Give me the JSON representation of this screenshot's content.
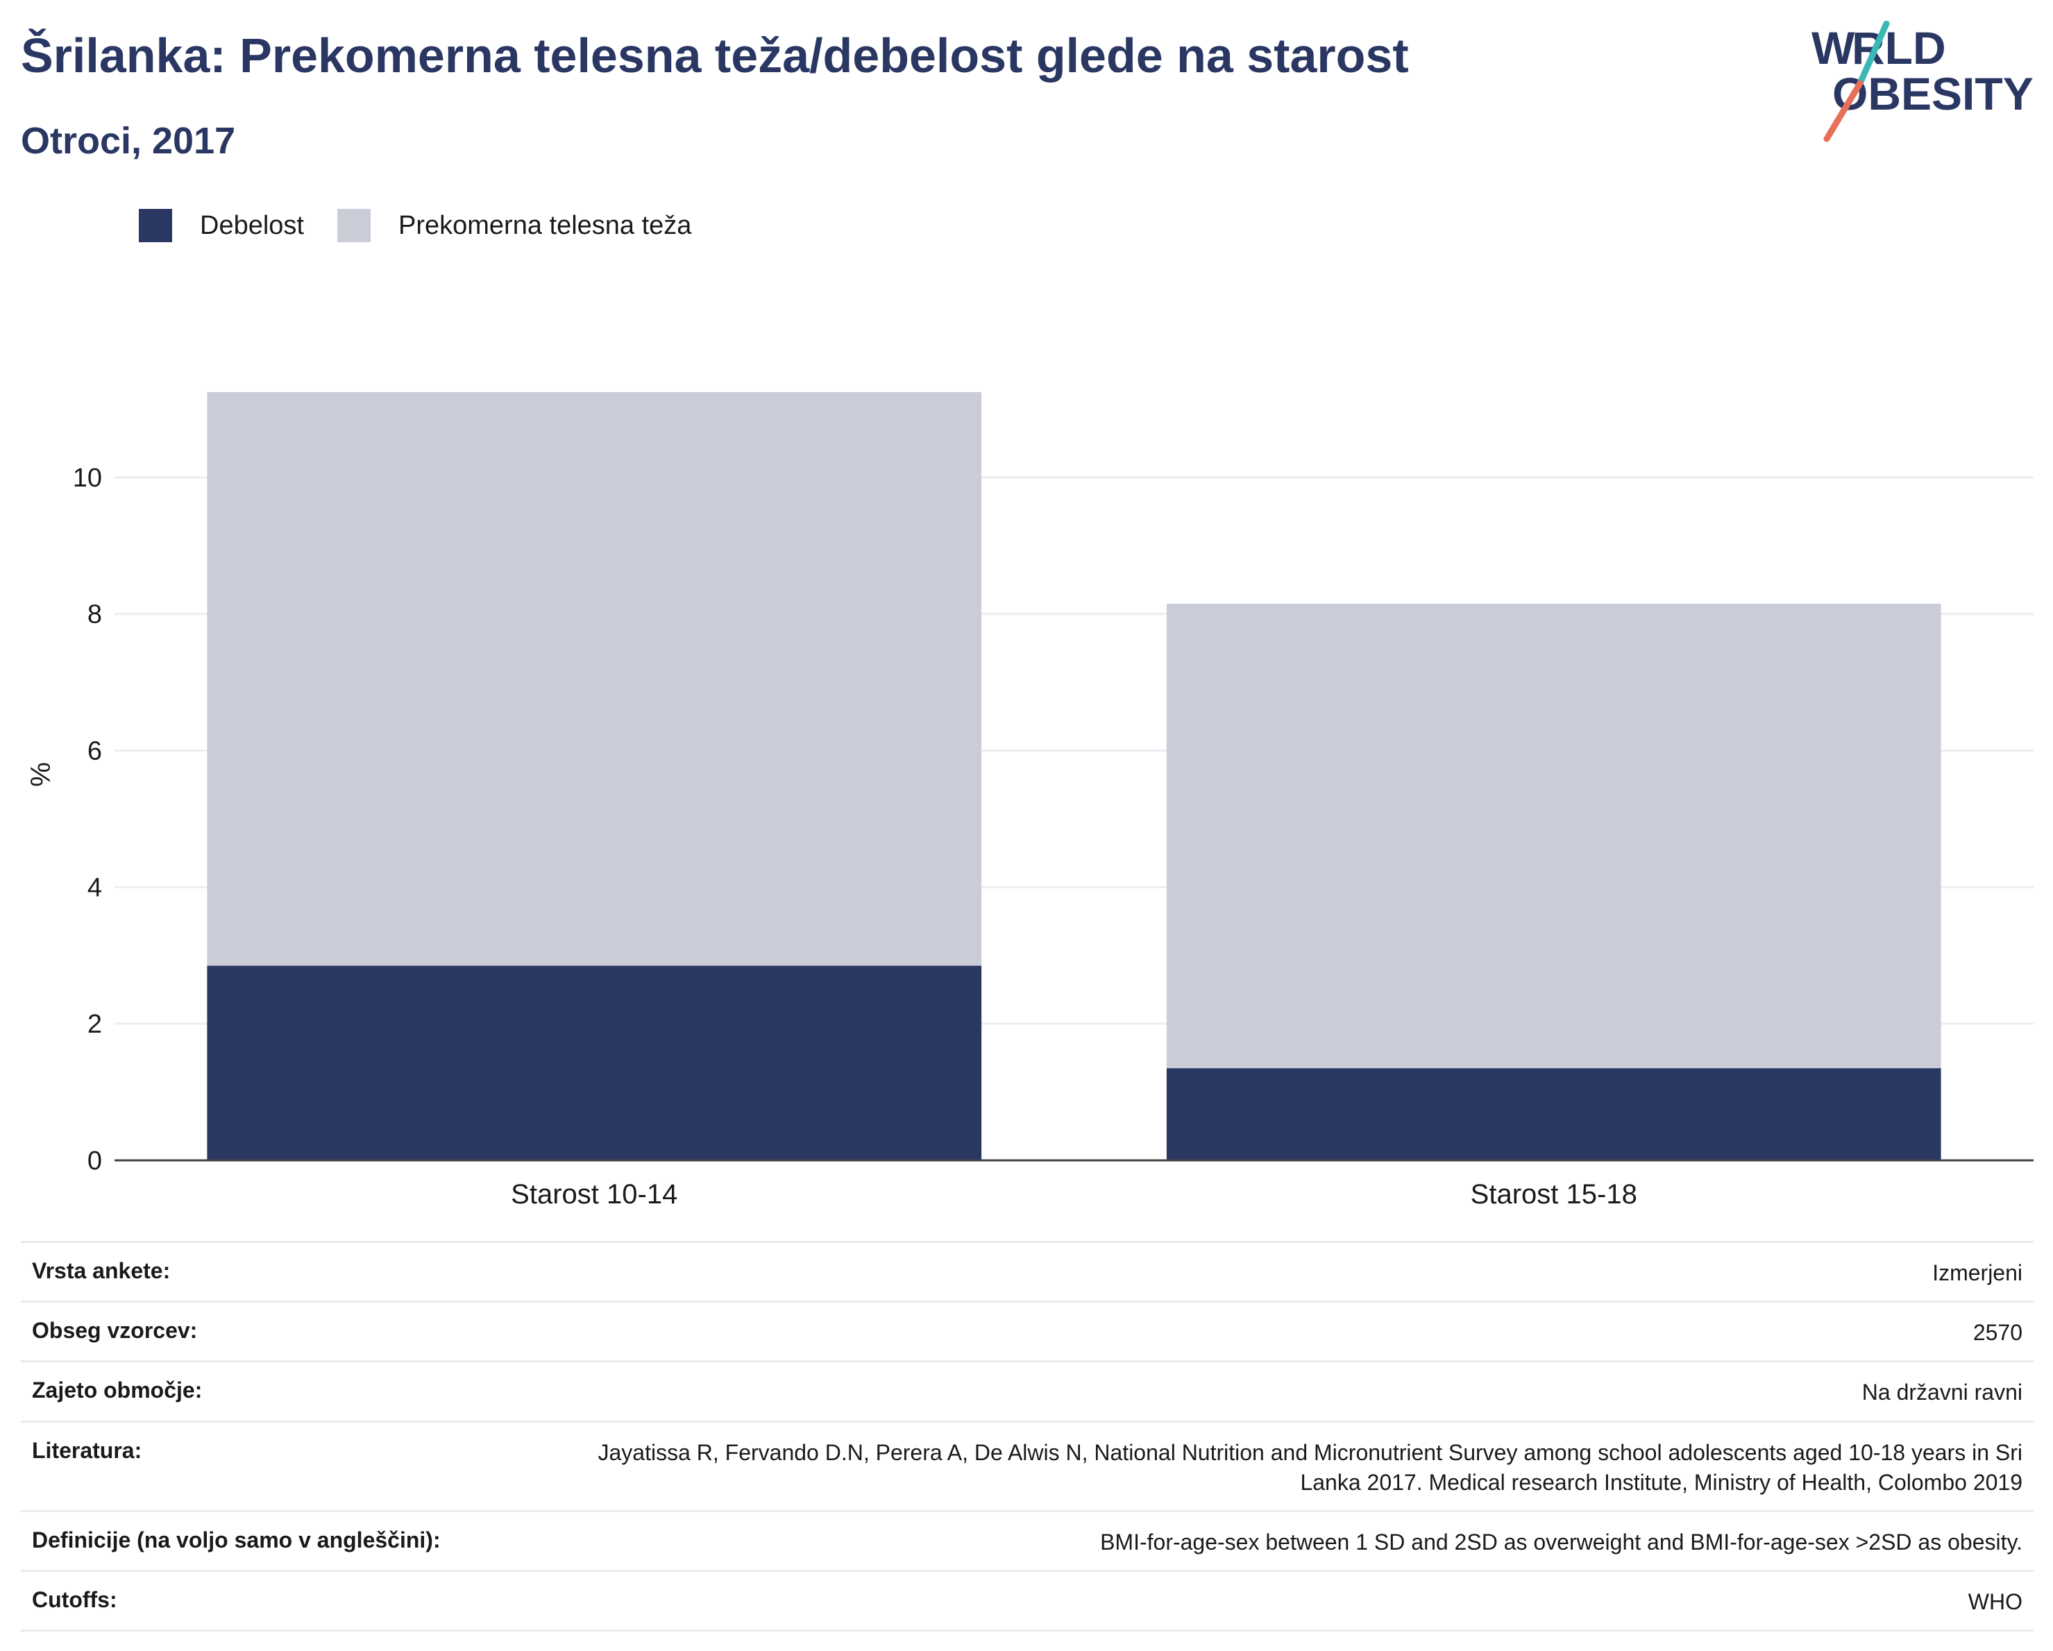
{
  "header": {
    "title": "Šrilanka: Prekomerna telesna teža/debelost glede na starost",
    "subtitle": "Otroci, 2017",
    "logo_text": "WORLD OBESITY"
  },
  "colors": {
    "obesity": "#2a3763",
    "overweight": "#cacdd8",
    "title": "#2a3763",
    "logo_teal": "#3bb8b4",
    "logo_coral": "#e8705a"
  },
  "chart_data": {
    "type": "bar",
    "stacked": true,
    "categories": [
      "Starost 10-14",
      "Starost 15-18"
    ],
    "series": [
      {
        "name": "Debelost",
        "values": [
          2.85,
          1.35
        ]
      },
      {
        "name": "Prekomerna telesna teža",
        "values": [
          8.4,
          6.8
        ]
      }
    ],
    "ylabel": "%",
    "ylim": [
      0,
      11.3
    ],
    "yticks": [
      0,
      2,
      4,
      6,
      8,
      10
    ],
    "grid": true,
    "legend_position": "top-left"
  },
  "info": [
    {
      "label": "Vrsta ankete:",
      "value": "Izmerjeni"
    },
    {
      "label": "Obseg vzorcev:",
      "value": "2570"
    },
    {
      "label": "Zajeto območje:",
      "value": "Na državni ravni"
    },
    {
      "label": "Literatura:",
      "value": "Jayatissa R, Fervando D.N, Perera A, De Alwis N, National Nutrition and Micronutrient Survey among school adolescents aged 10-18 years in Sri Lanka 2017. Medical research Institute, Ministry of Health, Colombo 2019"
    },
    {
      "label": "Definicije (na voljo samo v angleščini):",
      "value": "BMI-for-age-sex between 1 SD and 2SD as overweight and BMI-for-age-sex >2SD as obesity."
    },
    {
      "label": "Cutoffs:",
      "value": "WHO"
    }
  ]
}
